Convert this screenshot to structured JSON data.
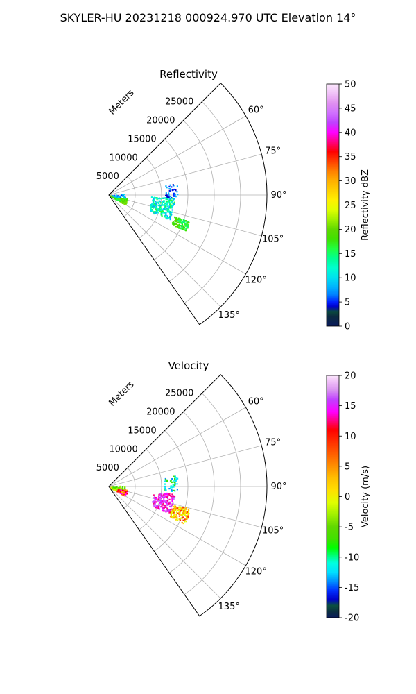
{
  "figure_title": "SKYLER-HU  20231218  000924.970 UTC Elevation 14°",
  "chart_data": [
    {
      "type": "polar-sector",
      "title": "Reflectivity",
      "radial_label": "Meters",
      "radial_ticks": [
        "5000",
        "10000",
        "15000",
        "20000",
        "25000"
      ],
      "angle_ticks": [
        "60°",
        "75°",
        "90°",
        "105°",
        "120°",
        "135°"
      ],
      "colorbar": {
        "label": "Reflectivity dBZ",
        "range": [
          0,
          50
        ],
        "ticks": [
          "0",
          "5",
          "10",
          "15",
          "20",
          "25",
          "30",
          "35",
          "40",
          "45",
          "50"
        ]
      }
    },
    {
      "type": "polar-sector",
      "title": "Velocity",
      "radial_label": "Meters",
      "radial_ticks": [
        "5000",
        "10000",
        "15000",
        "20000",
        "25000"
      ],
      "angle_ticks": [
        "60°",
        "75°",
        "90°",
        "105°",
        "120°",
        "135°"
      ],
      "colorbar": {
        "label": "Velocity (m/s)",
        "range": [
          -20,
          20
        ],
        "ticks": [
          "-20",
          "-15",
          "-10",
          "-5",
          "0",
          "5",
          "10",
          "15",
          "20"
        ]
      }
    }
  ]
}
